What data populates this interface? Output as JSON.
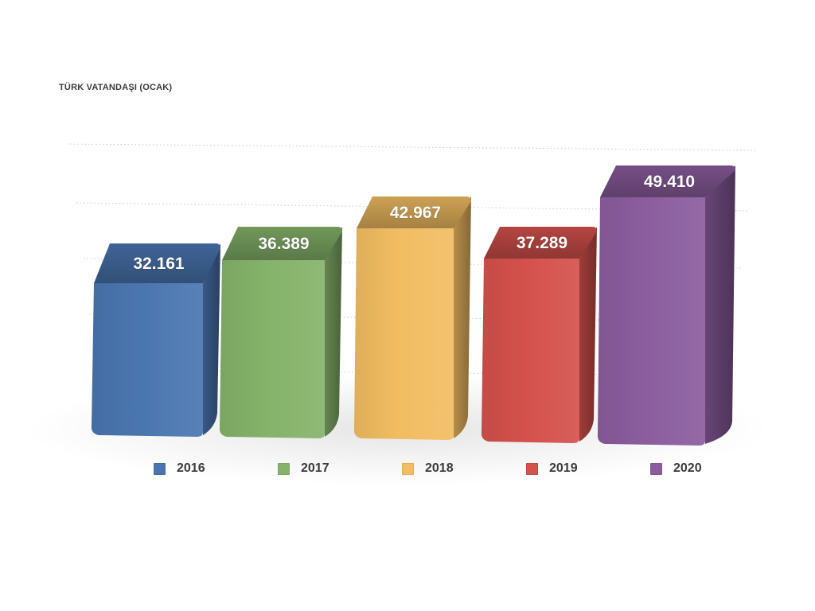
{
  "chart_data": {
    "type": "bar",
    "title": "TÜRK VATANDAŞI (OCAK)",
    "categories": [
      "2016",
      "2017",
      "2018",
      "2019",
      "2020"
    ],
    "values": [
      32161,
      36389,
      42967,
      37289,
      49410
    ],
    "value_labels": [
      "32.161",
      "36.389",
      "42.967",
      "37.289",
      "49.410"
    ],
    "colors": [
      "#4a76b0",
      "#85b36a",
      "#f2bd62",
      "#d4514c",
      "#8b5d9e"
    ],
    "legend_position": "bottom",
    "grid": true,
    "ylim": [
      0,
      55000
    ]
  }
}
